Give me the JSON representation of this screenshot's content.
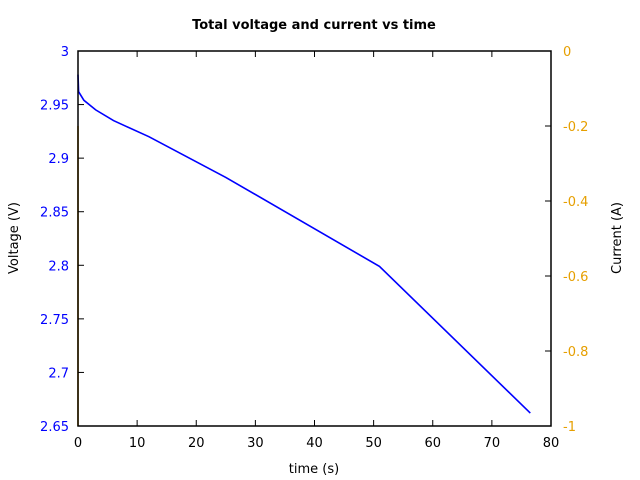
{
  "chart_data": {
    "type": "line",
    "title": "Total voltage and current vs time",
    "xlabel": "time (s)",
    "ylabel": "Voltage (V)",
    "y2label": "Current (A)",
    "xlim": [
      0,
      80
    ],
    "ylim": [
      2.65,
      3
    ],
    "y2lim": [
      -1,
      0
    ],
    "grid": false,
    "legend": "none",
    "x_ticks": [
      "0",
      "10",
      "20",
      "30",
      "40",
      "50",
      "60",
      "70",
      "80"
    ],
    "y_ticks": [
      "2.65",
      "2.7",
      "2.75",
      "2.8",
      "2.85",
      "2.9",
      "2.95",
      "3"
    ],
    "y2_ticks": [
      "-1",
      "-0.8",
      "-0.6",
      "-0.4",
      "-0.2",
      "0"
    ],
    "series": [
      {
        "name": "Voltage",
        "axis": "left",
        "color": "#0000ff",
        "x": [
          0,
          0.1,
          1,
          3,
          6,
          12,
          25,
          51,
          76.5
        ],
        "values": [
          2.978,
          2.962,
          2.954,
          2.945,
          2.935,
          2.92,
          2.882,
          2.799,
          2.662
        ]
      },
      {
        "name": "Current",
        "axis": "right",
        "color": "#e69f00",
        "x": [
          0,
          0
        ],
        "values": [
          -1,
          -0.2
        ]
      }
    ]
  },
  "colors": {
    "left_axis": "#0000ff",
    "right_axis": "#e69f00"
  }
}
